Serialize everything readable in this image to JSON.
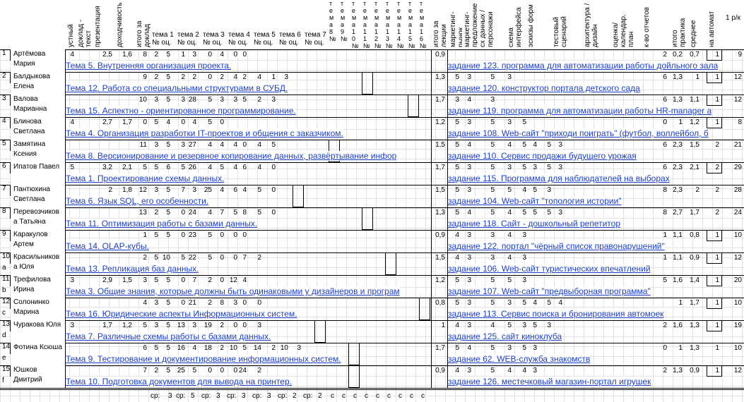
{
  "headers": {
    "c1": "устный доклад",
    "c2": "доклад - текст",
    "c3": "презентация",
    "c4": "доходчивость",
    "c5": "итого за доклад",
    "themes": [
      "тема 1",
      "тема 2",
      "тема 3",
      "тема 4",
      "тема 5",
      "тема 6",
      "тема 7"
    ],
    "theme_sub": "№ оц.",
    "narrow": [
      "тема 8 №",
      "тема 9 №",
      "тема 10 №",
      "тема 11 №",
      "тема 12 №",
      "тема 13 №",
      "тема 14 №",
      "тема 15 №",
      "тема 16 №"
    ],
    "itogo_lec": "итого за лекции",
    "r1": "маркетинг-рынок",
    "r2": "маркетинг-предложение",
    "r3": "сх данных / персонажи",
    "r4": "схема интерфейса",
    "r5": "эскизы форм",
    "r6": "тестовый сценарий",
    "r7": "архитектура / дизайн",
    "r8": "оценка/ календар. план",
    "r9": "к-во отчетов",
    "r10": "итого практика",
    "r11": "среднее",
    "r12": "на автомат",
    "r13": "1 р/к"
  },
  "rows": [
    {
      "n": "1",
      "name": "Артёмова Мария",
      "v": [
        "4",
        "",
        "2,5",
        "1,6",
        "8",
        "2",
        "5",
        "1",
        "3",
        "0",
        "4",
        "0",
        "0"
      ],
      "topic": "Тема 5. Внутренняя организация проекта.",
      "lec": "0,9",
      "task": "задание 123. программа для автоматизации работы дойльного зала",
      "p": [
        "",
        "",
        "",
        "",
        "",
        "",
        "",
        "",
        "2",
        "0,2",
        "0,7",
        "1",
        "9"
      ]
    },
    {
      "n": "2",
      "name": "Балдыкова Елена",
      "v": [
        "",
        "",
        "",
        "",
        "9",
        "2",
        "5",
        "2",
        "2",
        "0",
        "2",
        "4",
        "2",
        "4",
        "1",
        "3"
      ],
      "topic": "Тема 12. Работа со специальными структурами в СУБД.",
      "lec": "1,3",
      "task": "задание 120. конструктор портала детского сада",
      "p": [
        "5",
        "3",
        "5",
        "3",
        "",
        "",
        "",
        "",
        "6",
        "1,3",
        "1",
        "1",
        "12"
      ]
    },
    {
      "n": "3",
      "name": "Валова Марианна",
      "v": [
        "",
        "",
        "",
        "",
        "10",
        "3",
        "5",
        "3",
        "28",
        "5",
        "3",
        "3",
        "5",
        "2",
        "3"
      ],
      "topic": "Тема 15. Аспектно - ориентированное программирование.",
      "lec": "1,7",
      "task": "задание 119. программа для автоматизации работы HR-manager а",
      "p": [
        "3",
        "4",
        "3",
        "",
        "",
        "",
        "",
        "",
        "6",
        "1,3",
        "1,1",
        "1",
        "12"
      ]
    },
    {
      "n": "4",
      "name": "Блинова Светлана",
      "v": [
        "4",
        "",
        "2,7",
        "1,7",
        "0",
        "5",
        "4",
        "0",
        "4",
        "5",
        "0"
      ],
      "topic": "Тема 4. Организация разработки IT-проектов и общения с заказчиком.",
      "lec": "1,2",
      "task": "задание 108. Web-сайт \"приходи поиграть\" (футбол, воллейбол, б",
      "p": [
        "5",
        "3",
        "5",
        "3",
        "5",
        "",
        "",
        "",
        "0",
        "1",
        "1,2",
        "1",
        "8"
      ]
    },
    {
      "n": "5",
      "name": "Замятина Ксения",
      "v": [
        "",
        "",
        "",
        "",
        "11",
        "3",
        "5",
        "3",
        "27",
        "4",
        "4",
        "4",
        "0",
        "4",
        "5"
      ],
      "topic": "Тема 8. Версионирование и резервное копирование данных, развёртывание инфор",
      "lec": "1,5",
      "task": "задание 110. Сервис продажи будущего урожая",
      "p": [
        "5",
        "4",
        "5",
        "4",
        "5",
        "4",
        "5",
        "3",
        "6",
        "2,3",
        "1,5",
        "2",
        "21"
      ]
    },
    {
      "n": "6",
      "name": "Ипатов Павел",
      "v": [
        "5",
        "",
        "3,2",
        "2,1",
        "5",
        "5",
        "6",
        "5",
        "26",
        "4",
        "5",
        "4",
        "6",
        "4",
        "0"
      ],
      "topic": "Тема 1. Проектирование схемы данных.",
      "lec": "1,7",
      "task": "задание 115. Программа для наблюдателей на выборах",
      "p": [
        "5",
        "3",
        "5",
        "3",
        "5",
        "3",
        "5",
        "3",
        "6",
        "2,3",
        "2,1",
        "2",
        "29"
      ]
    },
    {
      "n": "7",
      "name": "Пантюхина Светлана",
      "v": [
        "",
        "",
        "2",
        "1,8",
        "12",
        "3",
        "5",
        "7",
        "3",
        "25",
        "4",
        "6",
        "4",
        "5",
        "0"
      ],
      "topic": "Тема 6. Язык SQL, его особенности.",
      "lec": "1,5",
      "task": "задание 104. Web-сайт \"топология истории\"",
      "p": [
        "5",
        "3",
        "5",
        "5",
        "4",
        "5",
        "3",
        "",
        "8",
        "2,3",
        "2",
        "2",
        "28"
      ]
    },
    {
      "n": "8",
      "name": "Перевозчиков а Татьяна",
      "v": [
        "",
        "",
        "",
        "",
        "13",
        "2",
        "5",
        "0",
        "24",
        "4",
        "7",
        "5",
        "8",
        "5",
        "0"
      ],
      "topic": "Тема 11. Оптимизация работы с базами данных.",
      "lec": "1,3",
      "task": "задание 118. Сайт - дошкольный репетитор",
      "p": [
        "5",
        "4",
        "5",
        "4",
        "5",
        "5",
        "5",
        "3",
        "8",
        "2,7",
        "1,7",
        "2",
        "24"
      ]
    },
    {
      "n": "9",
      "name": "Каракулов Артем",
      "v": [
        "",
        "",
        "",
        "",
        "1",
        "5",
        "5",
        "0",
        "23",
        "5",
        "0",
        "0",
        "0"
      ],
      "topic": "Тема 14. OLAP-кубы.",
      "lec": "0,9",
      "task": "задание 122. портал \"чёрный список правонарушений\"",
      "p": [
        "4",
        "3",
        "3",
        "4",
        "3",
        "",
        "",
        "",
        "1",
        "1,1",
        "0,8",
        "1",
        "10"
      ]
    },
    {
      "n": "10",
      "name": "Красильников а Юля",
      "v": [
        "",
        "",
        "",
        "",
        "2",
        "5",
        "10",
        "5",
        "22",
        "5",
        "0",
        "0",
        "7",
        "2"
      ],
      "topic": "Тема 13. Репликация баз данных.",
      "lec": "1,5",
      "task": "задание 106. Web-сайт туристических впечатлений",
      "p": [
        "4",
        "3",
        "3",
        "4",
        "3",
        "",
        "",
        "",
        "1",
        "1,1",
        "0,9",
        "1",
        "12"
      ]
    },
    {
      "n": "11",
      "name": "Трефилова Ирина",
      "v": [
        "3",
        "",
        "2,9",
        "1,5",
        "3",
        "5",
        "5",
        "0",
        "7",
        "2",
        "0",
        "12",
        "4"
      ],
      "topic": "Тема 3. Общие знания, которые должны быть одинаковыми у дизайнеров и програм",
      "lec": "1,2",
      "task": "задание 107. Web-сайт \"предвыборная программа\"",
      "p": [
        "5",
        "3",
        "5",
        "5",
        "3",
        "",
        "",
        "",
        "5",
        "1,6",
        "1,4",
        "1",
        "20"
      ]
    },
    {
      "n": "12",
      "name": "Солонинко Марина",
      "v": [
        "",
        "",
        "",
        "",
        "4",
        "3",
        "5",
        "0",
        "21",
        "2",
        "8",
        "3",
        "0",
        "0"
      ],
      "topic": "Тема 16. Юридические аспекты Информационных систем.",
      "lec": "0,8",
      "task": "задание 113. Сервис поиска и бронирования автомоек",
      "p": [
        "5",
        "3",
        "5",
        "3",
        "5",
        "4",
        "5",
        "4",
        "",
        "1",
        "1,7",
        "1",
        "10"
      ]
    },
    {
      "n": "13",
      "name": "Чуракова Юля",
      "v": [
        "3",
        "",
        "1,7",
        "1,2",
        "5",
        "3",
        "5",
        "13",
        "3",
        "19",
        "2",
        "0",
        "0",
        "3"
      ],
      "topic": "Тема 7. Различные схемы работы с базами данных.",
      "lec": "1",
      "task": "задание 125. сайт киноклуба",
      "p": [
        "4",
        "3",
        "4",
        "5",
        "3",
        "5",
        "3",
        "",
        "2",
        "1,6",
        "1,3",
        "1",
        "19"
      ]
    },
    {
      "n": "14",
      "name": "Фотина Ксюша",
      "v": [
        "",
        "",
        "",
        "",
        "6",
        "5",
        "5",
        "16",
        "4",
        "18",
        "2",
        "10",
        "5",
        "14",
        "2",
        "10",
        "3"
      ],
      "topic": "Тема 9. Тестирование и документирование информационных систем.",
      "lec": "1,7",
      "task": "задание 62. WEB-служба знакомств",
      "p": [
        "5",
        "4",
        "5",
        "3",
        "5",
        "3",
        "",
        "",
        "0",
        "1",
        "1,3",
        "1",
        "10"
      ]
    },
    {
      "n": "15",
      "name": "Юшков Дмитрий",
      "v": [
        "",
        "",
        "",
        "",
        "7",
        "2",
        "5",
        "25",
        "5",
        "0",
        "0",
        "0",
        "24",
        "2"
      ],
      "topic": "Тема 10. Подготовка документов для вывода на принтер.",
      "lec": "0,9",
      "task": "задание 126. местечковый магазин-портал игрушек",
      "p": [
        "4",
        "3",
        "5",
        "4",
        "4",
        "3",
        "",
        "",
        "2",
        "1,3",
        "0,9",
        "1",
        "12"
      ]
    }
  ],
  "row_ids_letters": [
    "",
    "",
    "",
    "",
    "",
    "",
    "",
    "",
    "",
    "a",
    "b",
    "c",
    "d",
    "e",
    "f"
  ],
  "footer": {
    "labels": [
      "ср:",
      "3",
      "ср:",
      "5",
      "ср:",
      "3",
      "ср:",
      "3",
      "ср:",
      "3",
      "ср:",
      "2",
      "ср:",
      "2"
    ],
    "cs": [
      "с",
      "с",
      "с",
      "с",
      "с",
      "с",
      "с",
      "с",
      "с"
    ]
  }
}
